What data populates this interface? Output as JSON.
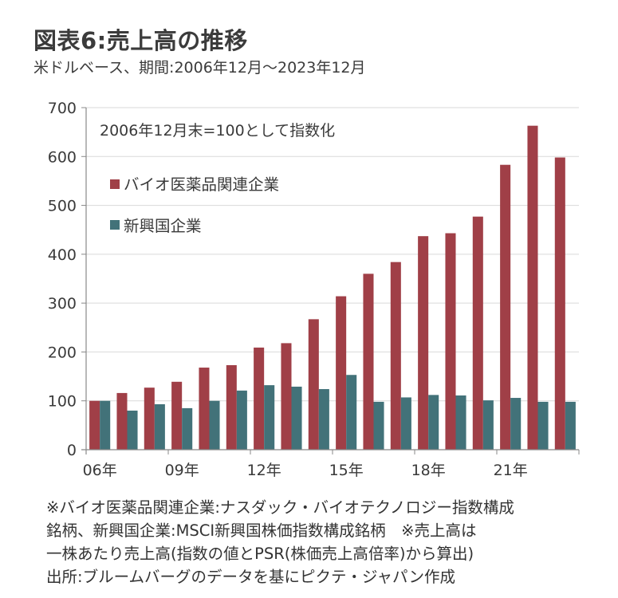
{
  "header": {
    "title": "図表6:売上高の推移",
    "subtitle": "米ドルベース、期間:2006年12月～2023年12月"
  },
  "chart_data": {
    "type": "bar",
    "title": "図表6:売上高の推移",
    "subtitle": "米ドルベース、期間:2006年12月～2023年12月",
    "annotation": "2006年12月末=100として指数化",
    "xlabel": "",
    "ylabel": "",
    "ylim": [
      0,
      700
    ],
    "yticks": [
      0,
      100,
      200,
      300,
      400,
      500,
      600,
      700
    ],
    "ytick_labels": [
      "0",
      "100",
      "200",
      "300",
      "400",
      "500",
      "600",
      "700"
    ],
    "grid": true,
    "legend_position": "top-left",
    "categories": [
      "2006",
      "2007",
      "2008",
      "2009",
      "2010",
      "2011",
      "2012",
      "2013",
      "2014",
      "2015",
      "2016",
      "2017",
      "2018",
      "2019",
      "2020",
      "2021",
      "2022",
      "2023"
    ],
    "xtick_labels": [
      {
        "index": 0,
        "label": "06年"
      },
      {
        "index": 3,
        "label": "09年"
      },
      {
        "index": 6,
        "label": "12年"
      },
      {
        "index": 9,
        "label": "15年"
      },
      {
        "index": 12,
        "label": "18年"
      },
      {
        "index": 15,
        "label": "21年"
      }
    ],
    "series": [
      {
        "name": "バイオ医薬品関連企業",
        "color": "#a03f47",
        "values": [
          100,
          116,
          127,
          139,
          168,
          173,
          209,
          218,
          267,
          314,
          360,
          384,
          437,
          443,
          477,
          583,
          663,
          598
        ]
      },
      {
        "name": "新興国企業",
        "color": "#427279",
        "values": [
          100,
          80,
          93,
          85,
          100,
          121,
          132,
          129,
          124,
          153,
          98,
          107,
          112,
          111,
          101,
          106,
          98,
          98
        ]
      }
    ]
  },
  "footnotes": [
    "※バイオ医薬品関連企業:ナスダック・バイオテクノロジー指数構成",
    "銘柄、新興国企業:MSCI新興国株価指数構成銘柄　※売上高は",
    "一株あたり売上高(指数の値とPSR(株価売上高倍率)から算出)",
    "出所:ブルームバーグのデータを基にピクテ・ジャパン作成"
  ]
}
